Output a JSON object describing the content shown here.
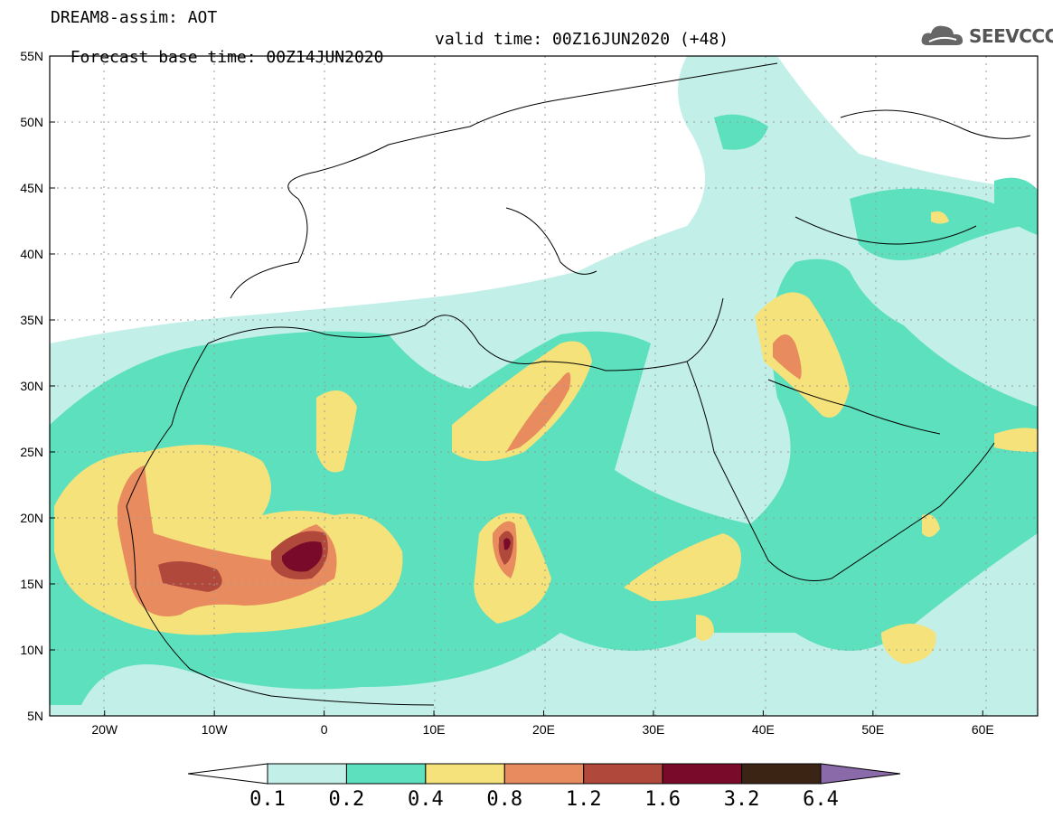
{
  "header": {
    "title_line1": "DREAM8-assim: AOT",
    "forecast_base": "Forecast base time: 00Z14JUN2020",
    "valid_time": "valid time: 00Z16JUN2020 (+48)"
  },
  "logo": {
    "text": "SEEVCCC",
    "icon": "cloud-icon"
  },
  "map": {
    "lat_labels": [
      "55N",
      "50N",
      "45N",
      "40N",
      "35N",
      "30N",
      "25N",
      "20N",
      "15N",
      "10N",
      "5N"
    ],
    "lon_labels": [
      "20W",
      "10W",
      "0",
      "10E",
      "20E",
      "30E",
      "40E",
      "50E",
      "60E"
    ],
    "extent": {
      "lon_min": -25,
      "lon_max": 65,
      "lat_min": 5,
      "lat_max": 55
    }
  },
  "colorbar": {
    "labels": [
      "0.1",
      "0.2",
      "0.4",
      "0.8",
      "1.2",
      "1.6",
      "3.2",
      "6.4"
    ],
    "colors": [
      "#ffffff",
      "#c2f0e8",
      "#5ce0be",
      "#f5e27a",
      "#e88b5e",
      "#b0483c",
      "#7a0a2a",
      "#3b2414",
      "#8a6aa8"
    ]
  }
}
